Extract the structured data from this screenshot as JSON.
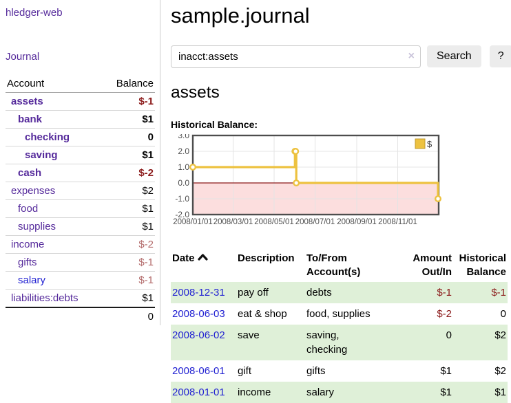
{
  "colors": {
    "purple": "#552a9b",
    "blue": "#2222d2",
    "negative": "#8b1a1a",
    "dim_negative": "#b36b6b",
    "row_green": "#dff0d8",
    "gold": "#edc240",
    "gold_border": "#bf9b30",
    "pink": "#fcdede",
    "zero_line": "#8b1717",
    "grid": "#e4e4e4",
    "chart_border": "#4d4d4d",
    "tick_text": "#4d4d4d",
    "divider": "#cccccc"
  },
  "sidebar": {
    "app_title": "hledger-web",
    "journal_label": "Journal",
    "table": {
      "headers": [
        "Account",
        "Balance"
      ],
      "rows": [
        {
          "account": "assets",
          "balance": "$-1",
          "indent": 0,
          "bold": true,
          "balance_style": "neg"
        },
        {
          "account": "bank",
          "balance": "$1",
          "indent": 1,
          "bold": true,
          "balance_style": "normal"
        },
        {
          "account": "checking",
          "balance": "0",
          "indent": 2,
          "bold": true,
          "balance_style": "normal"
        },
        {
          "account": "saving",
          "balance": "$1",
          "indent": 2,
          "bold": true,
          "balance_style": "normal"
        },
        {
          "account": "cash",
          "balance": "$-2",
          "indent": 1,
          "bold": true,
          "balance_style": "neg"
        },
        {
          "account": "expenses",
          "balance": "$2",
          "indent": 0,
          "bold": false,
          "balance_style": "normal"
        },
        {
          "account": "food",
          "balance": "$1",
          "indent": 1,
          "bold": false,
          "balance_style": "normal"
        },
        {
          "account": "supplies",
          "balance": "$1",
          "indent": 1,
          "bold": false,
          "balance_style": "normal"
        },
        {
          "account": "income",
          "balance": "$-2",
          "indent": 0,
          "bold": false,
          "balance_style": "dimneg"
        },
        {
          "account": "gifts",
          "balance": "$-1",
          "indent": 1,
          "bold": false,
          "balance_style": "dimneg"
        },
        {
          "account": "salary",
          "balance": "$-1",
          "indent": 1,
          "bold": false,
          "balance_style": "dimneg",
          "link": "blue"
        },
        {
          "account": "liabilities:debts",
          "balance": "$1",
          "indent": 0,
          "bold": false,
          "balance_style": "normal"
        }
      ],
      "total": "0"
    }
  },
  "main": {
    "title": "sample.journal",
    "account_heading": "assets"
  },
  "search": {
    "value": "inacct:assets",
    "button_label": "Search",
    "help_label": "?",
    "clear_icon": "×"
  },
  "chart_data": {
    "type": "line",
    "title": "Historical Balance:",
    "legend": "$",
    "legend_position": "top-right",
    "grid": true,
    "ylim": [
      -2,
      3
    ],
    "x_range": [
      "2008-01-01",
      "2009-01-01"
    ],
    "x_ticks": [
      "2008/01/01",
      "2008/03/01",
      "2008/05/01",
      "2008/07/01",
      "2008/09/01",
      "2008/11/01"
    ],
    "y_ticks": [
      "3.0",
      "2.0",
      "1.0",
      "0.0",
      "-1.0",
      "-2.0"
    ],
    "series": [
      {
        "name": "$",
        "step": true,
        "points": [
          [
            "2008-01-01",
            1
          ],
          [
            "2008-06-01",
            2
          ],
          [
            "2008-06-02",
            2
          ],
          [
            "2008-06-03",
            0
          ],
          [
            "2008-12-31",
            -1
          ]
        ]
      }
    ]
  },
  "register": {
    "headers": [
      {
        "line1": "Date",
        "line2": "",
        "align": "left",
        "sorted": "asc"
      },
      {
        "line1": "Description",
        "line2": "",
        "align": "left"
      },
      {
        "line1": "To/From",
        "line2": "Account(s)",
        "align": "left"
      },
      {
        "line1": "Amount",
        "line2": "Out/In",
        "align": "right"
      },
      {
        "line1": "Historical",
        "line2": "Balance",
        "align": "right"
      }
    ],
    "rows": [
      {
        "date": "2008-12-31",
        "description": "pay off",
        "accounts": "debts",
        "amount": "$-1",
        "amount_style": "neg",
        "balance": "$-1",
        "balance_style": "neg"
      },
      {
        "date": "2008-06-03",
        "description": "eat & shop",
        "accounts": "food, supplies",
        "amount": "$-2",
        "amount_style": "neg",
        "balance": "0",
        "balance_style": "normal"
      },
      {
        "date": "2008-06-02",
        "description": "save",
        "accounts": "saving,\nchecking",
        "amount": "0",
        "amount_style": "normal",
        "balance": "$2",
        "balance_style": "normal"
      },
      {
        "date": "2008-06-01",
        "description": "gift",
        "accounts": "gifts",
        "amount": "$1",
        "amount_style": "normal",
        "balance": "$2",
        "balance_style": "normal"
      },
      {
        "date": "2008-01-01",
        "description": "income",
        "accounts": "salary",
        "amount": "$1",
        "amount_style": "normal",
        "balance": "$1",
        "balance_style": "normal"
      }
    ]
  }
}
